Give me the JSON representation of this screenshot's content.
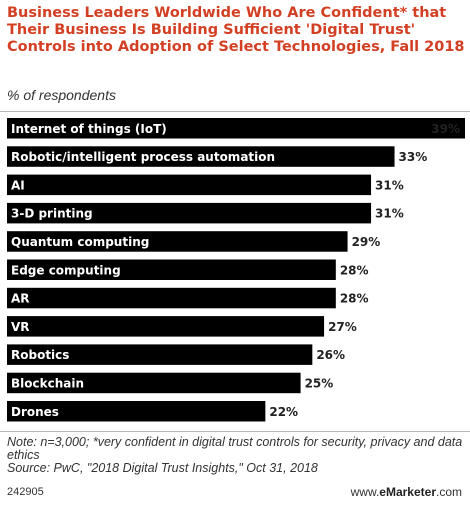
{
  "title": "Business Leaders Worldwide Who Are Confident* that Their Business Is Building Sufficient 'Digital Trust' Controls into Adoption of Select Technologies, Fall 2018",
  "subtitle": "% of respondents",
  "note": "Note: n=3,000; *very confident in digital trust controls for security, privacy and data ethics",
  "source": "Source: PwC, \"2018 Digital Trust Insights,\" Oct 31, 2018",
  "chart_id": "242905",
  "brand": {
    "prefix": "www.",
    "name": "eMarketer",
    "suffix": ".com"
  },
  "colors": {
    "bar": "#000000",
    "title": "#d33f23",
    "rule": "#b7b7b7"
  },
  "chart_data": {
    "type": "bar",
    "orientation": "horizontal",
    "categories": [
      "Internet of things (IoT)",
      "Robotic/intelligent process automation",
      "AI",
      "3-D printing",
      "Quantum computing",
      "Edge computing",
      "AR",
      "VR",
      "Robotics",
      "Blockchain",
      "Drones"
    ],
    "values": [
      39,
      33,
      31,
      31,
      29,
      28,
      28,
      27,
      26,
      25,
      22
    ],
    "value_suffix": "%",
    "title": "Business Leaders Worldwide Who Are Confident* that Their Business Is Building Sufficient 'Digital Trust' Controls into Adoption of Select Technologies, Fall 2018",
    "ylabel": "% of respondents",
    "xlim": [
      0,
      39
    ],
    "grid": false,
    "legend": "none"
  }
}
